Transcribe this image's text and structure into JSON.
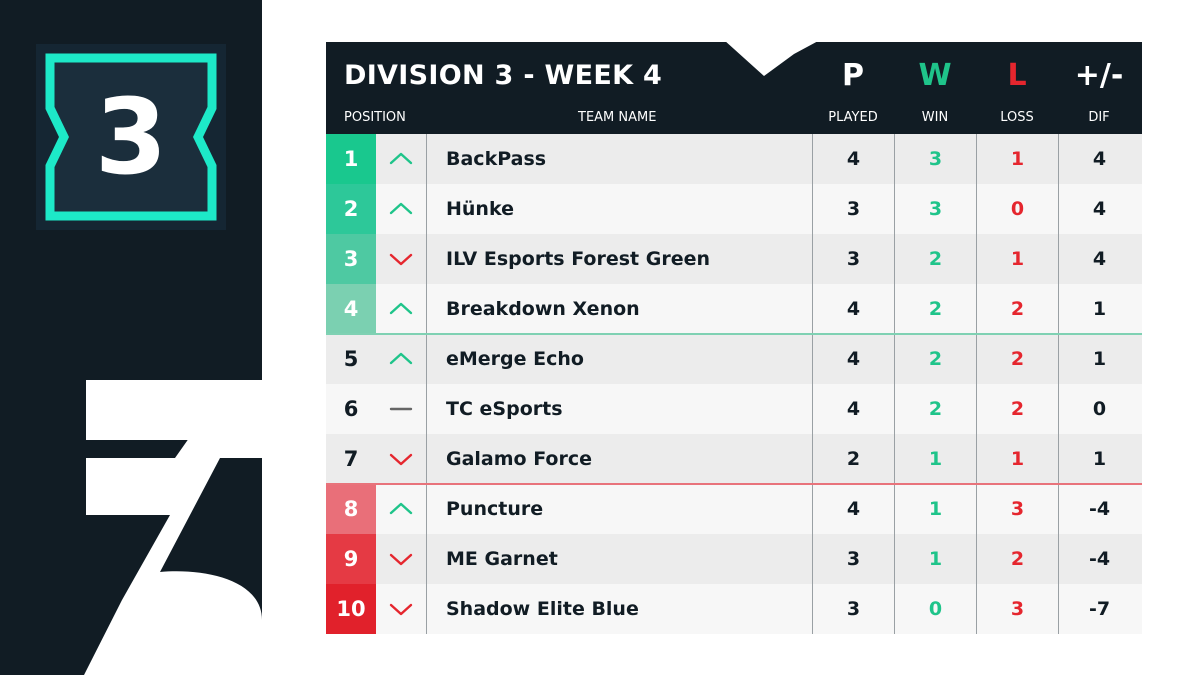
{
  "badge": {
    "number": "3"
  },
  "colors": {
    "dark": "#111c24",
    "teal": "#1de9c8",
    "win_green": "#1fc48a",
    "loss_red": "#e5262e",
    "up_arrow": "#1fc48a",
    "down_arrow": "#e5262e",
    "same": "#666666",
    "promotion_line": "#7fd1b3",
    "relegation_line": "#e8737b"
  },
  "header": {
    "title": "DIVISION 3 - WEEK 4",
    "position_label": "POSITION",
    "team_label": "TEAM NAME",
    "columns": [
      {
        "key": "P",
        "label": "PLAYED",
        "color": "#ffffff"
      },
      {
        "key": "W",
        "label": "WIN",
        "color": "#1fc48a"
      },
      {
        "key": "L",
        "label": "LOSS",
        "color": "#e5262e"
      },
      {
        "key": "+/-",
        "label": "DIF",
        "color": "#ffffff"
      }
    ]
  },
  "rows": [
    {
      "pos": "1",
      "trend": "up",
      "team": "BackPass",
      "played": "4",
      "win": "3",
      "loss": "1",
      "dif": "4",
      "pos_color": "#19c88e"
    },
    {
      "pos": "2",
      "trend": "up",
      "team": "Hünke",
      "played": "3",
      "win": "3",
      "loss": "0",
      "dif": "4",
      "pos_color": "#2dc899"
    },
    {
      "pos": "3",
      "trend": "down",
      "team": "ILV Esports Forest Green",
      "played": "3",
      "win": "2",
      "loss": "1",
      "dif": "4",
      "pos_color": "#4ec9a2"
    },
    {
      "pos": "4",
      "trend": "up",
      "team": "Breakdown Xenon",
      "played": "4",
      "win": "2",
      "loss": "2",
      "dif": "1",
      "pos_color": "#7bd0b1"
    },
    {
      "pos": "5",
      "trend": "up",
      "team": "eMerge Echo",
      "played": "4",
      "win": "2",
      "loss": "2",
      "dif": "1",
      "pos_color": ""
    },
    {
      "pos": "6",
      "trend": "same",
      "team": "TC eSports",
      "played": "4",
      "win": "2",
      "loss": "2",
      "dif": "0",
      "pos_color": ""
    },
    {
      "pos": "7",
      "trend": "down",
      "team": "Galamo Force",
      "played": "2",
      "win": "1",
      "loss": "1",
      "dif": "1",
      "pos_color": ""
    },
    {
      "pos": "8",
      "trend": "up",
      "team": "Puncture",
      "played": "4",
      "win": "1",
      "loss": "3",
      "dif": "-4",
      "pos_color": "#e96f79"
    },
    {
      "pos": "9",
      "trend": "down",
      "team": "ME Garnet",
      "played": "3",
      "win": "1",
      "loss": "2",
      "dif": "-4",
      "pos_color": "#e53a44"
    },
    {
      "pos": "10",
      "trend": "down",
      "team": "Shadow Elite Blue",
      "played": "3",
      "win": "0",
      "loss": "3",
      "dif": "-7",
      "pos_color": "#e1212b"
    }
  ]
}
